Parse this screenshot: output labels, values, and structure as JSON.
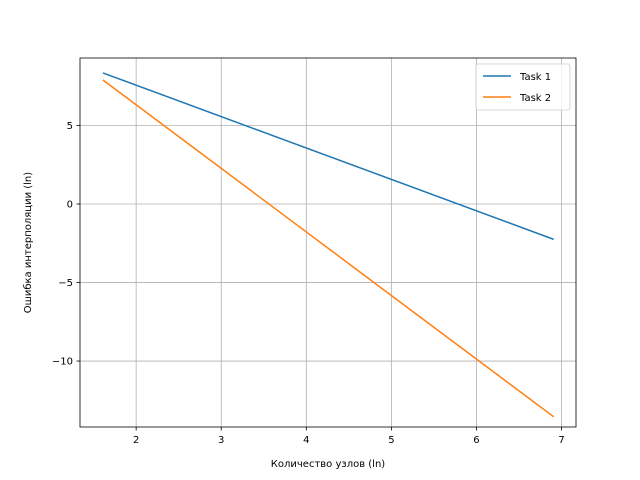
{
  "chart_data": {
    "type": "line",
    "title": "",
    "xlabel": "Количество узлов (ln)",
    "ylabel": "Ошибка интерполяции (ln)",
    "xlim": [
      1.34,
      7.17
    ],
    "ylim": [
      -14.2,
      9.3
    ],
    "xticks": [
      2,
      3,
      4,
      5,
      6,
      7
    ],
    "xtick_labels": [
      "2",
      "3",
      "4",
      "5",
      "6",
      "7"
    ],
    "yticks": [
      -10,
      -5,
      0,
      5
    ],
    "ytick_labels": [
      "−10",
      "−5",
      "0",
      "5"
    ],
    "grid": true,
    "legend_position": "top-right",
    "series": [
      {
        "name": "Task 1",
        "color": "#1f77b4",
        "x": [
          1.609,
          6.908
        ],
        "y": [
          8.35,
          -2.25
        ]
      },
      {
        "name": "Task 2",
        "color": "#ff7f0e",
        "x": [
          1.609,
          6.908
        ],
        "y": [
          7.9,
          -13.55
        ]
      }
    ]
  }
}
